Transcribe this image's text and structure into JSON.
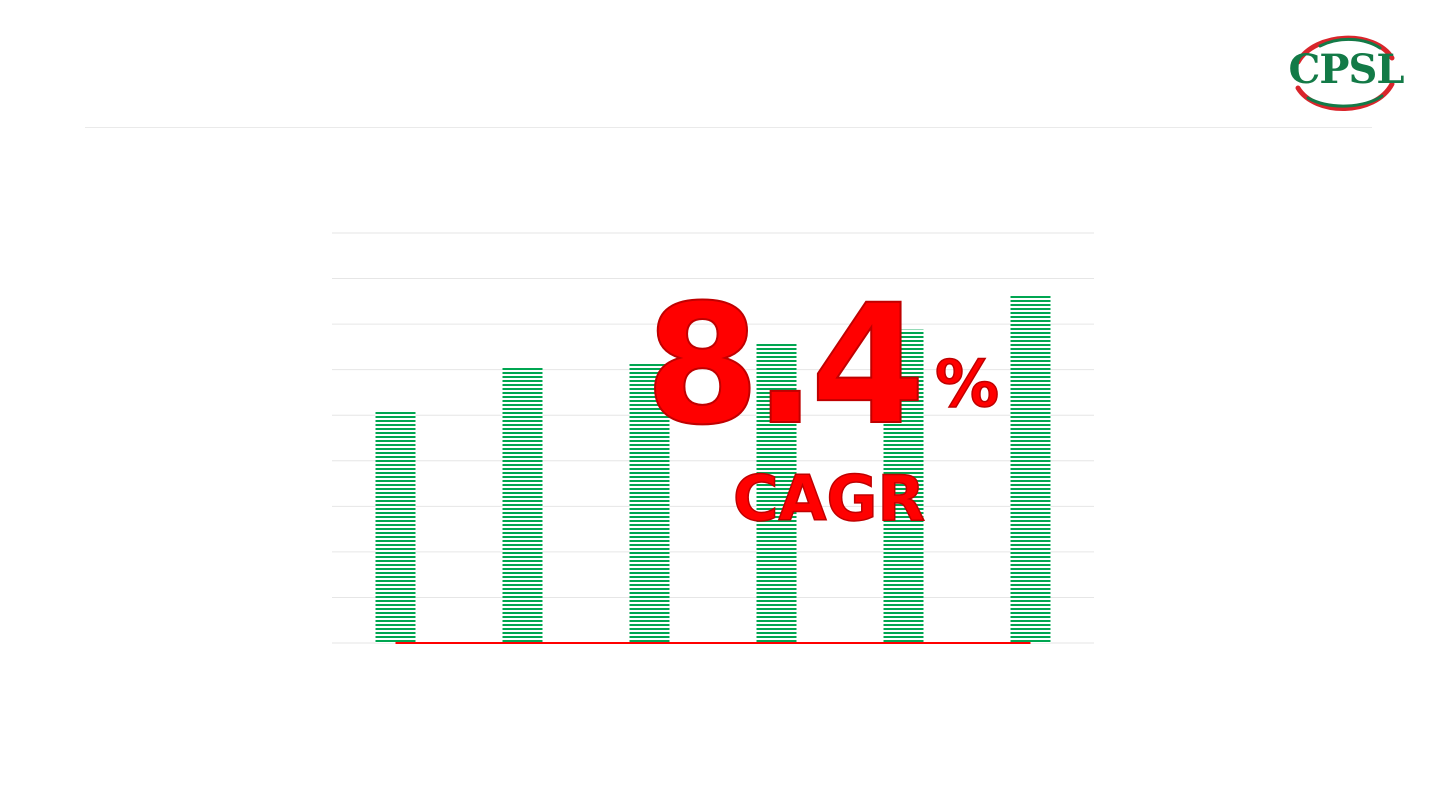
{
  "brand": {
    "logo_text": "CPSL",
    "colors": {
      "green": "#137a47",
      "red": "#d9252b"
    }
  },
  "highlight": {
    "value": "8.4",
    "unit": "%",
    "label": "CAGR",
    "color": "#ff0000"
  },
  "chart_data": {
    "type": "bar",
    "categories": [
      "",
      "",
      "",
      "",
      "",
      ""
    ],
    "values": [
      51,
      60.7,
      61.5,
      66,
      68.8,
      76.5
    ],
    "ylim": [
      0,
      90
    ],
    "gridlines": 9,
    "grid": true,
    "bar_color": "#00a651",
    "bar_fill": "horizontal-stripes",
    "baseline_color": "#ff0000",
    "title": "",
    "xlabel": "",
    "ylabel": ""
  }
}
